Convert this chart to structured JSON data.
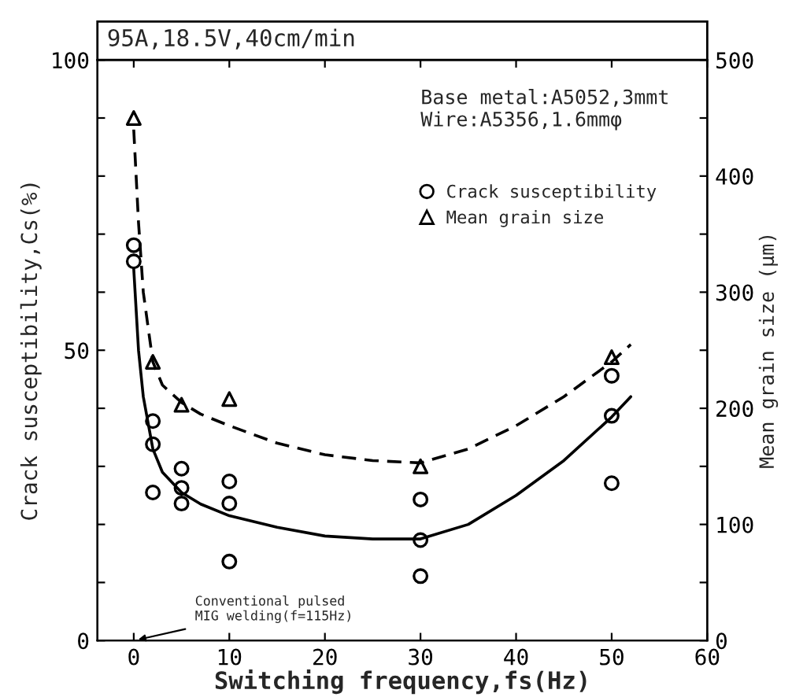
{
  "chart_data": {
    "type": "scatter",
    "title": "95A,18.5V,40cm/min",
    "xlabel": "Switching frequency,fs(Hz)",
    "ylabel": "Crack susceptibility,Cs(%)",
    "y2label": "Mean grain size (μm)",
    "xlim": [
      -3.8,
      60
    ],
    "xticks": [
      0,
      10,
      20,
      30,
      40,
      50,
      60
    ],
    "ylim": [
      0,
      100
    ],
    "yticks": [
      0,
      {
        "value": 10,
        "label": null
      },
      {
        "value": 20,
        "label": null
      },
      {
        "value": 30,
        "label": null
      },
      {
        "value": 40,
        "label": null
      },
      50,
      {
        "value": 60,
        "label": null
      },
      {
        "value": 70,
        "label": null
      },
      {
        "value": 80,
        "label": null
      },
      {
        "value": 90,
        "label": null
      },
      100
    ],
    "y2lim": [
      0,
      500
    ],
    "y2ticks": [
      0,
      {
        "value": 50,
        "label": null
      },
      100,
      {
        "value": 150,
        "label": null
      },
      200,
      {
        "value": 250,
        "label": null
      },
      300,
      {
        "value": 350,
        "label": null
      },
      400,
      {
        "value": 450,
        "label": null
      },
      500
    ],
    "grid": false,
    "legend": "top right",
    "series": [
      {
        "name": "Crack susceptibility",
        "color": "#000000",
        "marker": "circle",
        "x": [
          0,
          0,
          2,
          2,
          2,
          5,
          5,
          5,
          10,
          10,
          10,
          30,
          30,
          30,
          50,
          50,
          50
        ],
        "values": [
          68.1,
          65.3,
          37.8,
          33.8,
          25.5,
          29.6,
          26.3,
          23.6,
          27.4,
          23.6,
          13.6,
          24.3,
          17.3,
          11.1,
          45.6,
          38.7,
          27.1
        ]
      },
      {
        "name": "Mean grain size",
        "color": "#000000",
        "marker": "triangle",
        "axis": "y2",
        "x": [
          0,
          2,
          5,
          10,
          30,
          50
        ],
        "values": [
          450,
          240,
          203,
          208,
          150,
          244
        ]
      },
      {
        "type": "line",
        "color": "#000000",
        "line_style": "solid",
        "x": [
          0,
          0.5,
          1,
          2,
          3,
          5,
          7,
          10,
          15,
          20,
          25,
          30,
          35,
          40,
          45,
          50,
          52
        ],
        "values": [
          64,
          50,
          42,
          33,
          29,
          25.5,
          23.5,
          21.5,
          19.5,
          18,
          17.5,
          17.5,
          20,
          25,
          31,
          38.5,
          42
        ]
      },
      {
        "type": "line",
        "color": "#000000",
        "line_style": "dashed",
        "axis": "y2",
        "x": [
          0,
          0.5,
          1,
          2,
          3,
          5,
          7,
          10,
          15,
          20,
          25,
          30,
          35,
          40,
          45,
          50,
          52
        ],
        "values": [
          440,
          360,
          300,
          240,
          220,
          205,
          195,
          185,
          170,
          160,
          155,
          153,
          165,
          185,
          210,
          240,
          255
        ]
      }
    ],
    "annotations": [
      "Base metal:A5052,3mmt\nWire:A5356,1.6mmφ",
      "Conventional pulsed\nMIG welding(f=115Hz)"
    ]
  }
}
